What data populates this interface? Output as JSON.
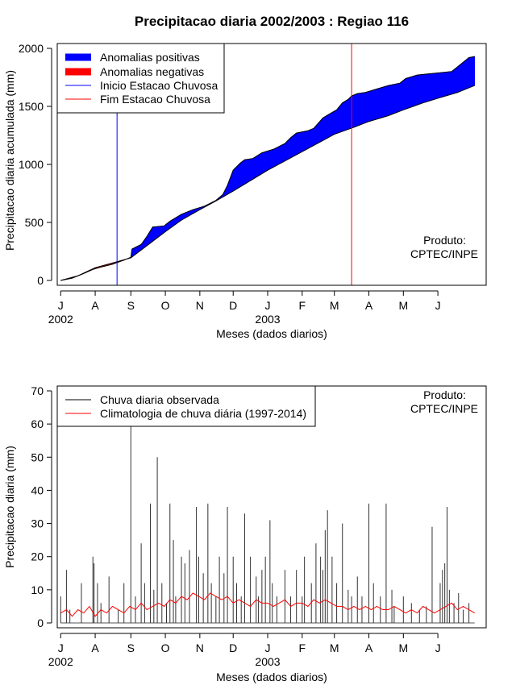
{
  "page_title": "Precipitacao diaria 2002/2003 : Regiao 116",
  "chart_data": [
    {
      "type": "area",
      "title": "Precipitacao diaria 2002/2003 : Regiao 116",
      "xlabel": "Meses (dados diarios)",
      "ylabel": "Precipitacao diaria acumulada (mm)",
      "ylim": [
        0,
        2000
      ],
      "xlim_days": [
        -3,
        370
      ],
      "yticks": [
        0,
        500,
        1000,
        1500,
        2000
      ],
      "month_ticks": [
        {
          "label": "J",
          "day": 0
        },
        {
          "label": "A",
          "day": 30
        },
        {
          "label": "S",
          "day": 61
        },
        {
          "label": "O",
          "day": 91
        },
        {
          "label": "N",
          "day": 121
        },
        {
          "label": "D",
          "day": 150
        },
        {
          "label": "J",
          "day": 180
        },
        {
          "label": "F",
          "day": 210
        },
        {
          "label": "M",
          "day": 238
        },
        {
          "label": "A",
          "day": 268
        },
        {
          "label": "M",
          "day": 298
        },
        {
          "label": "J",
          "day": 328
        }
      ],
      "year_labels": [
        {
          "label": "2002",
          "day": 0
        },
        {
          "label": "2003",
          "day": 180
        }
      ],
      "legend": {
        "position": "top-left",
        "entries": [
          {
            "label": "Anomalias positivas",
            "color": "#0000ff"
          },
          {
            "label": "Anomalias negativas",
            "color": "#ff0000"
          },
          {
            "label": "Inicio Estacao Chuvosa",
            "color": "#0000ff"
          },
          {
            "label": "Fim Estacao Chuvosa",
            "color": "#ff0000"
          }
        ]
      },
      "annotation": [
        "Produto:",
        "CPTEC/INPE"
      ],
      "rain_season_start_day": 49,
      "rain_season_end_day": 253,
      "series": [
        {
          "name": "Climatologia acumulada",
          "days": [
            0,
            15,
            30,
            45,
            61,
            75,
            91,
            105,
            121,
            135,
            150,
            165,
            180,
            195,
            210,
            225,
            238,
            255,
            268,
            285,
            298,
            315,
            328,
            345,
            355,
            360
          ],
          "values": [
            0,
            40,
            110,
            150,
            195,
            300,
            420,
            520,
            610,
            685,
            770,
            860,
            950,
            1030,
            1110,
            1190,
            1260,
            1320,
            1370,
            1420,
            1470,
            1530,
            1570,
            1620,
            1660,
            1680
          ]
        },
        {
          "name": "Chuva observada acumulada",
          "days": [
            0,
            10,
            20,
            28,
            35,
            45,
            55,
            61,
            62,
            70,
            75,
            80,
            90,
            95,
            105,
            115,
            125,
            135,
            141,
            145,
            150,
            156,
            160,
            167,
            175,
            185,
            195,
            200,
            205,
            215,
            220,
            228,
            233,
            240,
            245,
            250,
            253,
            258,
            265,
            275,
            285,
            295,
            300,
            310,
            320,
            330,
            340,
            345,
            350,
            355,
            360
          ],
          "values": [
            0,
            20,
            60,
            95,
            115,
            140,
            175,
            200,
            270,
            310,
            380,
            460,
            470,
            510,
            570,
            610,
            640,
            690,
            740,
            820,
            950,
            1010,
            1040,
            1050,
            1100,
            1130,
            1180,
            1230,
            1270,
            1290,
            1310,
            1400,
            1430,
            1470,
            1530,
            1560,
            1590,
            1610,
            1620,
            1650,
            1680,
            1700,
            1740,
            1770,
            1780,
            1790,
            1800,
            1840,
            1880,
            1920,
            1930
          ]
        }
      ]
    },
    {
      "type": "bar",
      "title": "",
      "xlabel": "Meses (dados diarios)",
      "ylabel": "Precipitacao diaria (mm)",
      "ylim": [
        0,
        70
      ],
      "xlim_days": [
        -3,
        370
      ],
      "yticks": [
        0,
        10,
        20,
        30,
        40,
        50,
        60,
        70
      ],
      "month_ticks": [
        {
          "label": "J",
          "day": 0
        },
        {
          "label": "A",
          "day": 30
        },
        {
          "label": "S",
          "day": 61
        },
        {
          "label": "O",
          "day": 91
        },
        {
          "label": "N",
          "day": 121
        },
        {
          "label": "D",
          "day": 150
        },
        {
          "label": "J",
          "day": 180
        },
        {
          "label": "F",
          "day": 210
        },
        {
          "label": "M",
          "day": 238
        },
        {
          "label": "A",
          "day": 268
        },
        {
          "label": "M",
          "day": 298
        },
        {
          "label": "J",
          "day": 328
        }
      ],
      "year_labels": [
        {
          "label": "2002",
          "day": 0
        },
        {
          "label": "2003",
          "day": 180
        }
      ],
      "legend": {
        "position": "top-left",
        "entries": [
          {
            "label": "Chuva diaria observada",
            "color": "#000000"
          },
          {
            "label": "Climatologia de chuva diária (1997-2014)",
            "color": "#ff0000"
          }
        ]
      },
      "annotation": [
        "Produto:",
        "CPTEC/INPE"
      ],
      "series": [
        {
          "name": "Chuva diaria observada",
          "days": [
            0,
            5,
            8,
            18,
            28,
            29,
            32,
            35,
            42,
            50,
            55,
            61,
            65,
            70,
            73,
            78,
            81,
            84,
            88,
            92,
            95,
            98,
            100,
            105,
            108,
            112,
            118,
            120,
            124,
            128,
            131,
            135,
            138,
            142,
            145,
            150,
            153,
            157,
            160,
            165,
            170,
            172,
            175,
            178,
            182,
            184,
            188,
            195,
            200,
            205,
            210,
            212,
            218,
            222,
            226,
            228,
            230,
            232,
            236,
            240,
            245,
            250,
            253,
            258,
            262,
            268,
            272,
            278,
            283,
            288,
            290,
            298,
            305,
            312,
            318,
            323,
            330,
            332,
            334,
            336,
            338,
            342,
            346,
            350,
            355
          ],
          "values": [
            8,
            16,
            4,
            12,
            20,
            18,
            12,
            6,
            14,
            4,
            12,
            60,
            8,
            24,
            12,
            36,
            10,
            50,
            12,
            6,
            36,
            25,
            8,
            20,
            18,
            22,
            35,
            20,
            15,
            36,
            12,
            8,
            20,
            15,
            35,
            20,
            12,
            8,
            33,
            20,
            14,
            8,
            16,
            20,
            31,
            12,
            8,
            16,
            8,
            16,
            8,
            20,
            12,
            24,
            20,
            16,
            28,
            34,
            20,
            12,
            30,
            10,
            8,
            14,
            8,
            36,
            12,
            8,
            36,
            10,
            5,
            8,
            6,
            4,
            5,
            29,
            12,
            16,
            18,
            35,
            10,
            6,
            9,
            4,
            6
          ]
        },
        {
          "name": "Climatologia de chuva diária (1997-2014)",
          "days": [
            0,
            5,
            10,
            15,
            20,
            25,
            30,
            35,
            40,
            45,
            50,
            55,
            60,
            65,
            70,
            75,
            80,
            85,
            90,
            95,
            100,
            105,
            110,
            115,
            120,
            125,
            130,
            135,
            140,
            145,
            150,
            155,
            160,
            165,
            170,
            175,
            180,
            185,
            190,
            195,
            200,
            205,
            210,
            215,
            220,
            225,
            230,
            235,
            240,
            245,
            250,
            255,
            260,
            265,
            270,
            275,
            280,
            285,
            290,
            295,
            300,
            305,
            310,
            315,
            320,
            325,
            330,
            335,
            340,
            345,
            350,
            355,
            360
          ],
          "values": [
            3,
            4,
            2,
            4,
            3,
            5,
            2,
            4,
            3,
            5,
            4,
            3,
            5,
            4,
            6,
            4,
            5,
            6,
            5,
            7,
            6,
            8,
            7,
            9,
            8,
            7,
            9,
            8,
            7,
            8,
            6,
            7,
            6,
            5,
            7,
            6,
            6,
            5,
            6,
            7,
            5,
            6,
            6,
            5,
            7,
            6,
            7,
            6,
            5,
            5,
            4,
            5,
            4,
            5,
            4,
            5,
            4,
            4,
            5,
            4,
            3,
            4,
            3,
            5,
            4,
            3,
            4,
            5,
            6,
            4,
            5,
            4,
            3
          ]
        }
      ]
    }
  ]
}
